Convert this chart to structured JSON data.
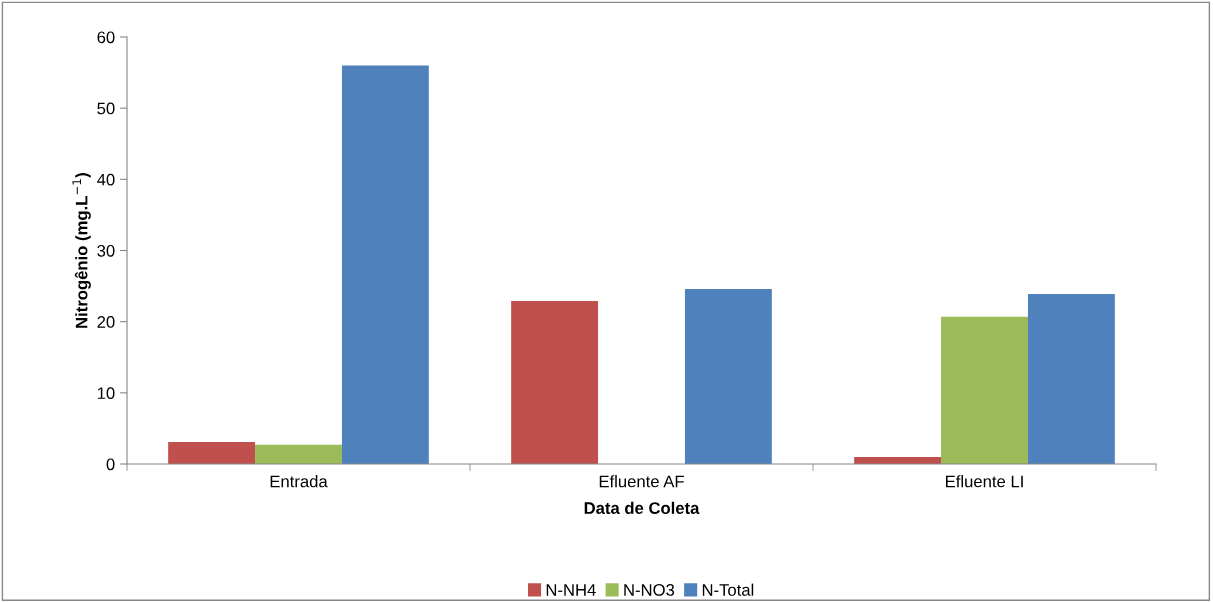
{
  "chart_data": {
    "type": "bar",
    "xlabel": "Data de Coleta",
    "ylabel": "Nitrogênio (mg.L$^{−1}$)",
    "categories": [
      "Entrada",
      "Efluente AF",
      "Efluente LI"
    ],
    "series": [
      {
        "name": "N-NH4",
        "color": "#c0504d",
        "values": [
          3.1,
          22.9,
          1.0
        ]
      },
      {
        "name": "N-NO3",
        "color": "#9bbb59",
        "values": [
          2.7,
          null,
          20.7
        ]
      },
      {
        "name": "N-Total",
        "color": "#4f81bd",
        "values": [
          56.0,
          24.6,
          23.9
        ]
      }
    ],
    "ylim": [
      0,
      60
    ],
    "yticks": [
      0,
      10,
      20,
      30,
      40,
      50,
      60
    ],
    "grid": false,
    "legend": "bottom"
  }
}
